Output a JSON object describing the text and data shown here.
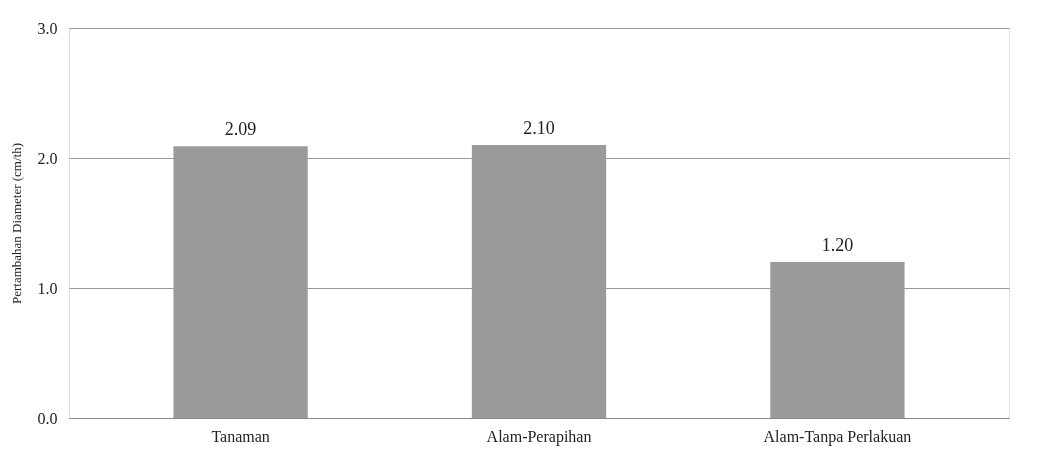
{
  "chart_data": {
    "type": "bar",
    "ylabel": "Pertambahan Diameter (cm/th)",
    "categories": [
      "Tanaman",
      "Alam-Perapihan",
      "Alam-Tanpa Perlakuan"
    ],
    "values": [
      2.09,
      2.1,
      1.2
    ],
    "value_labels": [
      "2.09",
      "2.10",
      "1.20"
    ],
    "color": "#9a9a9a",
    "ylim": [
      0,
      3
    ],
    "yticks": [
      {
        "value": 0,
        "label": "0.0"
      },
      {
        "value": 1,
        "label": "1.0"
      },
      {
        "value": 2,
        "label": "2.0"
      },
      {
        "value": 3,
        "label": "3.0"
      }
    ],
    "grid": "y"
  }
}
